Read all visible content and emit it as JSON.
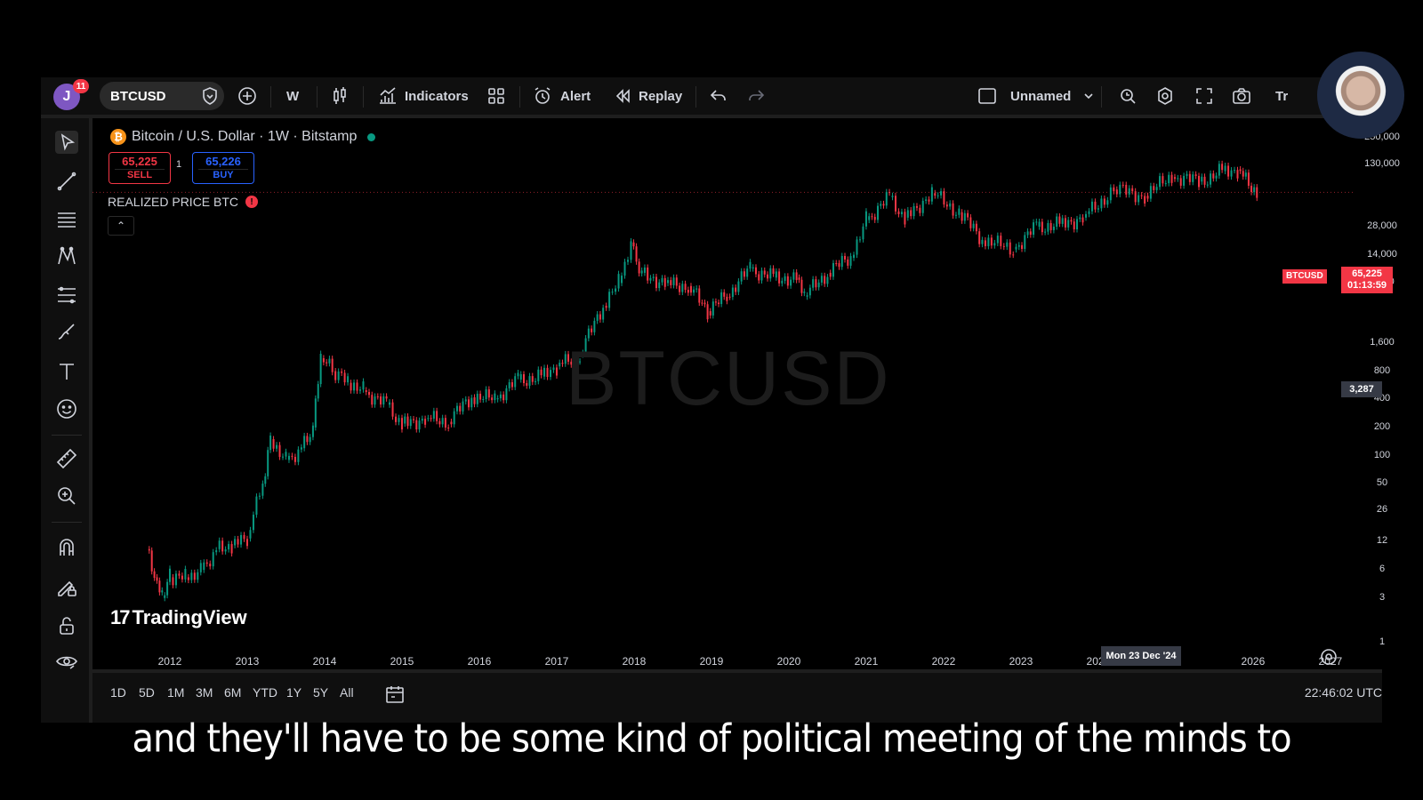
{
  "toolbar": {
    "avatar_letter": "J",
    "notification_count": "11",
    "symbol": "BTCUSD",
    "interval": "W",
    "indicators_label": "Indicators",
    "alert_label": "Alert",
    "replay_label": "Replay",
    "layout_name": "Unnamed",
    "trade_label": "Tr"
  },
  "legend": {
    "title": "Bitcoin / U.S. Dollar · 1W · Bitstamp",
    "sell_price": "65,225",
    "sell_label": "SELL",
    "buy_price": "65,226",
    "buy_label": "BUY",
    "spread": "1",
    "indicator_name": "REALIZED PRICE BTC",
    "indicator_warning": "!",
    "collapse_glyph": "⌃"
  },
  "watermark": "BTCUSD",
  "branding": "TradingView",
  "price_axis": {
    "symbol_tag": "BTCUSD",
    "last_price": "65,225",
    "countdown": "01:13:59",
    "crosshair_price": "3,287"
  },
  "time_axis": {
    "crosshair_date": "Mon 23 Dec '24"
  },
  "ranges": [
    "1D",
    "5D",
    "1M",
    "3M",
    "6M",
    "YTD",
    "1Y",
    "5Y",
    "All"
  ],
  "clock": "22:46:02 UTC",
  "subtitle": "and they'll have to be some kind of political meeting of the minds to",
  "colors": {
    "up": "#089981",
    "down": "#f23645",
    "accent": "#2962ff"
  },
  "chart_data": {
    "type": "line",
    "title": "Bitcoin / U.S. Dollar · 1W · Bitstamp",
    "y_scale": "log",
    "ylim": [
      1,
      250000
    ],
    "y_ticks": [
      250000,
      130000,
      28000,
      14000,
      7000,
      1600,
      800,
      400,
      200,
      100,
      50,
      26,
      12,
      6,
      3,
      1
    ],
    "y_tick_labels": [
      "250,000",
      "130,000",
      "28,000",
      "14,000",
      "7,000",
      "1,600",
      "800",
      "400",
      "200",
      "100",
      "50",
      "26",
      "12",
      "6",
      "3",
      "1"
    ],
    "x_tick_labels": [
      "2012",
      "2013",
      "2014",
      "2015",
      "2016",
      "2017",
      "2018",
      "2019",
      "2020",
      "2021",
      "2022",
      "2023",
      "2024",
      "2026",
      "2027"
    ],
    "x_ticks": [
      2012,
      2013,
      2014,
      2015,
      2016,
      2017,
      2018,
      2019,
      2020,
      2021,
      2022,
      2023,
      2024,
      2026,
      2027
    ],
    "xlim": [
      2011.0,
      2027.3
    ],
    "series": [
      {
        "x": [
          2011.7,
          2011.8,
          2011.9,
          2012.0,
          2012.2,
          2012.4,
          2012.6,
          2012.8,
          2013.0,
          2013.2,
          2013.3,
          2013.5,
          2013.7,
          2013.85,
          2013.95,
          2014.1,
          2014.3,
          2014.5,
          2014.8,
          2015.0,
          2015.3,
          2015.6,
          2015.9,
          2016.2,
          2016.5,
          2016.8,
          2017.0,
          2017.3,
          2017.6,
          2017.8,
          2017.96,
          2018.1,
          2018.4,
          2018.7,
          2018.95,
          2019.2,
          2019.5,
          2019.8,
          2020.1,
          2020.2,
          2020.5,
          2020.8,
          2021.0,
          2021.3,
          2021.5,
          2021.85,
          2022.2,
          2022.5,
          2022.9,
          2023.2,
          2023.5,
          2023.8,
          2024.2,
          2024.6,
          2024.95,
          2025.3,
          2025.6,
          2025.8,
          2026.05
        ],
        "values": [
          10,
          5,
          3,
          5,
          5,
          6,
          10,
          11,
          13,
          50,
          150,
          90,
          120,
          200,
          1100,
          800,
          600,
          500,
          350,
          220,
          250,
          230,
          420,
          400,
          650,
          700,
          900,
          1200,
          4000,
          7000,
          19000,
          9000,
          7000,
          6500,
          3500,
          5000,
          10000,
          8000,
          8000,
          5000,
          9000,
          13000,
          33000,
          58000,
          35000,
          64000,
          40000,
          20000,
          16000,
          28000,
          30000,
          35000,
          70000,
          60000,
          95000,
          85000,
          110000,
          115000,
          65225
        ]
      }
    ]
  }
}
